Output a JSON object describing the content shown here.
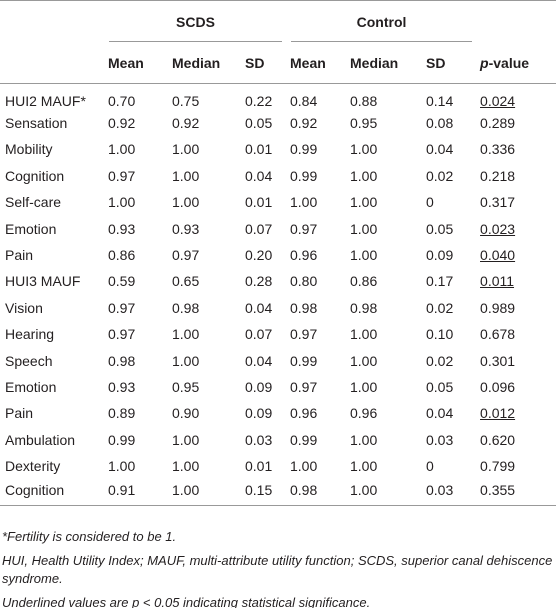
{
  "table": {
    "groups": [
      "SCDS",
      "Control"
    ],
    "columns": [
      "Mean",
      "Median",
      "SD",
      "Mean",
      "Median",
      "SD",
      "p-value"
    ],
    "rows": [
      [
        "HUI2 MAUF*",
        "0.70",
        "0.75",
        "0.22",
        "0.84",
        "0.88",
        "0.14",
        {
          "text": "0.024",
          "underlined": true
        }
      ],
      [
        "Sensation",
        "0.92",
        "0.92",
        "0.05",
        "0.92",
        "0.95",
        "0.08",
        {
          "text": "0.289",
          "underlined": false
        }
      ],
      [
        "Mobility",
        "1.00",
        "1.00",
        "0.01",
        "0.99",
        "1.00",
        "0.04",
        {
          "text": "0.336",
          "underlined": false
        }
      ],
      [
        "Cognition",
        "0.97",
        "1.00",
        "0.04",
        "0.99",
        "1.00",
        "0.02",
        {
          "text": "0.218",
          "underlined": false
        }
      ],
      [
        "Self-care",
        "1.00",
        "1.00",
        "0.01",
        "1.00",
        "1.00",
        "0",
        {
          "text": "0.317",
          "underlined": false
        }
      ],
      [
        "Emotion",
        "0.93",
        "0.93",
        "0.07",
        "0.97",
        "1.00",
        "0.05",
        {
          "text": "0.023",
          "underlined": true
        }
      ],
      [
        "Pain",
        "0.86",
        "0.97",
        "0.20",
        "0.96",
        "1.00",
        "0.09",
        {
          "text": "0.040",
          "underlined": true
        }
      ],
      [
        "HUI3 MAUF",
        "0.59",
        "0.65",
        "0.28",
        "0.80",
        "0.86",
        "0.17",
        {
          "text": "0.011",
          "underlined": true
        }
      ],
      [
        "Vision",
        "0.97",
        "0.98",
        "0.04",
        "0.98",
        "0.98",
        "0.02",
        {
          "text": "0.989",
          "underlined": false
        }
      ],
      [
        "Hearing",
        "0.97",
        "1.00",
        "0.07",
        "0.97",
        "1.00",
        "0.10",
        {
          "text": "0.678",
          "underlined": false
        }
      ],
      [
        "Speech",
        "0.98",
        "1.00",
        "0.04",
        "0.99",
        "1.00",
        "0.02",
        {
          "text": "0.301",
          "underlined": false
        }
      ],
      [
        "Emotion",
        "0.93",
        "0.95",
        "0.09",
        "0.97",
        "1.00",
        "0.05",
        {
          "text": "0.096",
          "underlined": false
        }
      ],
      [
        "Pain",
        "0.89",
        "0.90",
        "0.09",
        "0.96",
        "0.96",
        "0.04",
        {
          "text": "0.012",
          "underlined": true
        }
      ],
      [
        "Ambulation",
        "0.99",
        "1.00",
        "0.03",
        "0.99",
        "1.00",
        "0.03",
        {
          "text": "0.620",
          "underlined": false
        }
      ],
      [
        "Dexterity",
        "1.00",
        "1.00",
        "0.01",
        "1.00",
        "1.00",
        "0",
        {
          "text": "0.799",
          "underlined": false
        }
      ],
      [
        "Cognition",
        "0.91",
        "1.00",
        "0.15",
        "0.98",
        "1.00",
        "0.03",
        {
          "text": "0.355",
          "underlined": false
        }
      ]
    ]
  },
  "footnotes": [
    "*Fertility is considered to be 1.",
    "HUI, Health Utility Index; MAUF, multi-attribute utility function; SCDS, superior canal dehiscence syndrome.",
    "Underlined values are p < 0.05 indicating statistical significance."
  ]
}
